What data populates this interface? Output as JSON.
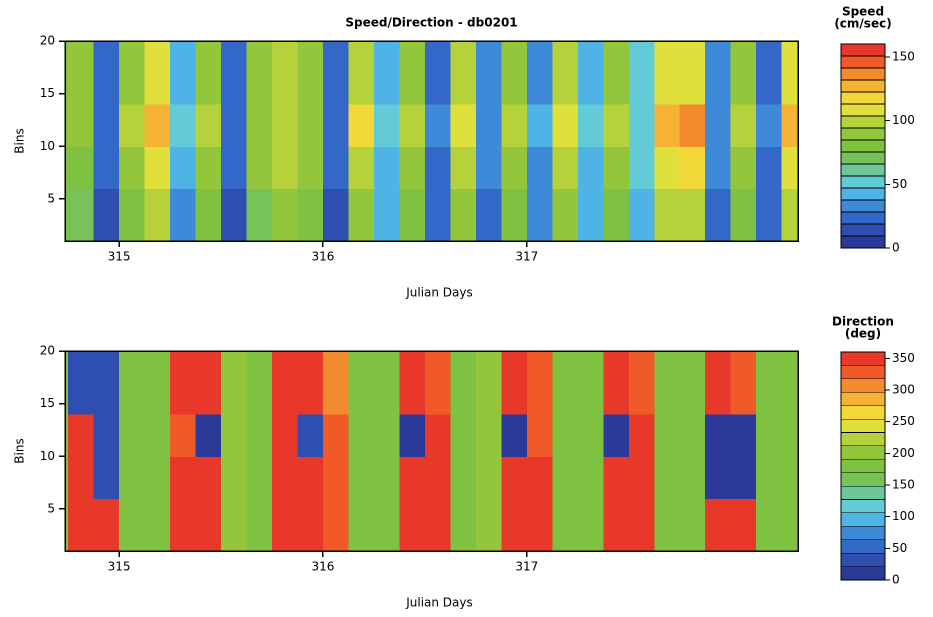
{
  "chart_data": [
    {
      "type": "heatmap",
      "title": "Speed/Direction - db0201",
      "xlabel": "Julian Days",
      "ylabel": "Bins",
      "colorbar_label": [
        "Speed",
        "(cm/sec)"
      ],
      "x": [
        314.75,
        314.875,
        315.0,
        315.125,
        315.25,
        315.375,
        315.5,
        315.625,
        315.75,
        315.875,
        316.0,
        316.125,
        316.25,
        316.375,
        316.5,
        316.625,
        316.75,
        316.875,
        317.0,
        317.125,
        317.25,
        317.375,
        317.5,
        317.625,
        317.75,
        317.875,
        318.0,
        318.125,
        318.25,
        318.33
      ],
      "y": [
        1,
        6,
        10,
        14,
        20
      ],
      "z": [
        [
          70,
          15,
          80,
          95,
          30,
          80,
          15,
          75,
          85,
          80,
          15,
          90,
          40,
          80,
          20,
          85,
          25,
          80,
          30,
          90,
          40,
          80,
          45,
          95,
          100,
          25,
          80,
          20,
          95
        ],
        [
          80,
          20,
          90,
          105,
          40,
          90,
          20,
          85,
          95,
          85,
          20,
          100,
          45,
          90,
          25,
          95,
          30,
          90,
          35,
          100,
          45,
          90,
          50,
          110,
          115,
          30,
          90,
          25,
          110
        ],
        [
          90,
          25,
          100,
          130,
          55,
          95,
          25,
          90,
          100,
          90,
          25,
          115,
          55,
          100,
          30,
          110,
          35,
          100,
          40,
          110,
          50,
          100,
          55,
          125,
          135,
          35,
          100,
          30,
          130
        ],
        [
          85,
          20,
          90,
          110,
          45,
          90,
          20,
          85,
          95,
          85,
          20,
          100,
          45,
          90,
          25,
          95,
          30,
          90,
          35,
          95,
          45,
          90,
          50,
          105,
          110,
          30,
          90,
          25,
          105
        ]
      ],
      "xlim": [
        314.735,
        318.33
      ],
      "ylim": [
        1,
        20
      ],
      "xticks": [
        315,
        316,
        317
      ],
      "yticks": [
        5,
        10,
        15,
        20
      ],
      "zlim": [
        0,
        160
      ],
      "zticks": [
        0,
        50,
        100,
        150
      ],
      "colormap": [
        "#2b3a98",
        "#2e4fb0",
        "#3468c8",
        "#3f8ad8",
        "#4fb3e6",
        "#63cbd6",
        "#6cc79a",
        "#77c35a",
        "#7fc241",
        "#94c63c",
        "#b5d23a",
        "#dfe03c",
        "#f3d83a",
        "#f6b234",
        "#f28a2e",
        "#ef5a28",
        "#e8382a"
      ]
    },
    {
      "type": "heatmap",
      "xlabel": "Julian Days",
      "ylabel": "Bins",
      "colorbar_label": [
        "Direction",
        "(deg)"
      ],
      "x": [
        314.75,
        314.875,
        315.0,
        315.125,
        315.25,
        315.375,
        315.5,
        315.625,
        315.75,
        315.875,
        316.0,
        316.125,
        316.25,
        316.375,
        316.5,
        316.625,
        316.75,
        316.875,
        317.0,
        317.125,
        317.25,
        317.375,
        317.5,
        317.625,
        317.75,
        317.875,
        318.0,
        318.125,
        318.25,
        318.33
      ],
      "y": [
        1,
        6,
        10,
        14,
        20
      ],
      "z": [
        [
          340,
          340,
          190,
          190,
          340,
          340,
          200,
          190,
          340,
          340,
          330,
          190,
          190,
          340,
          340,
          190,
          195,
          340,
          340,
          190,
          190,
          340,
          340,
          190,
          190,
          340,
          340,
          190,
          190
        ],
        [
          340,
          30,
          190,
          190,
          340,
          340,
          200,
          190,
          340,
          340,
          330,
          190,
          190,
          340,
          340,
          190,
          195,
          340,
          340,
          190,
          190,
          340,
          340,
          190,
          190,
          20,
          20,
          190,
          190
        ],
        [
          340,
          30,
          190,
          190,
          330,
          20,
          200,
          190,
          340,
          30,
          330,
          190,
          190,
          20,
          340,
          190,
          195,
          20,
          330,
          190,
          190,
          20,
          340,
          190,
          190,
          20,
          20,
          190,
          190
        ],
        [
          30,
          30,
          190,
          190,
          340,
          345,
          200,
          190,
          340,
          340,
          310,
          190,
          190,
          340,
          330,
          190,
          195,
          340,
          320,
          190,
          190,
          340,
          330,
          190,
          190,
          340,
          330,
          190,
          190
        ]
      ],
      "xlim": [
        314.735,
        318.33
      ],
      "ylim": [
        1,
        20
      ],
      "xticks": [
        315,
        316,
        317
      ],
      "yticks": [
        5,
        10,
        15,
        20
      ],
      "zlim": [
        0,
        360
      ],
      "zticks": [
        0,
        50,
        100,
        150,
        200,
        250,
        300,
        350
      ],
      "colormap": [
        "#2b3a98",
        "#2e4fb0",
        "#3468c8",
        "#3f8ad8",
        "#4fb3e6",
        "#63cbd6",
        "#6cc79a",
        "#77c35a",
        "#7fc241",
        "#94c63c",
        "#b5d23a",
        "#dfe03c",
        "#f3d83a",
        "#f6b234",
        "#f28a2e",
        "#ef5a28",
        "#e8382a"
      ]
    }
  ]
}
